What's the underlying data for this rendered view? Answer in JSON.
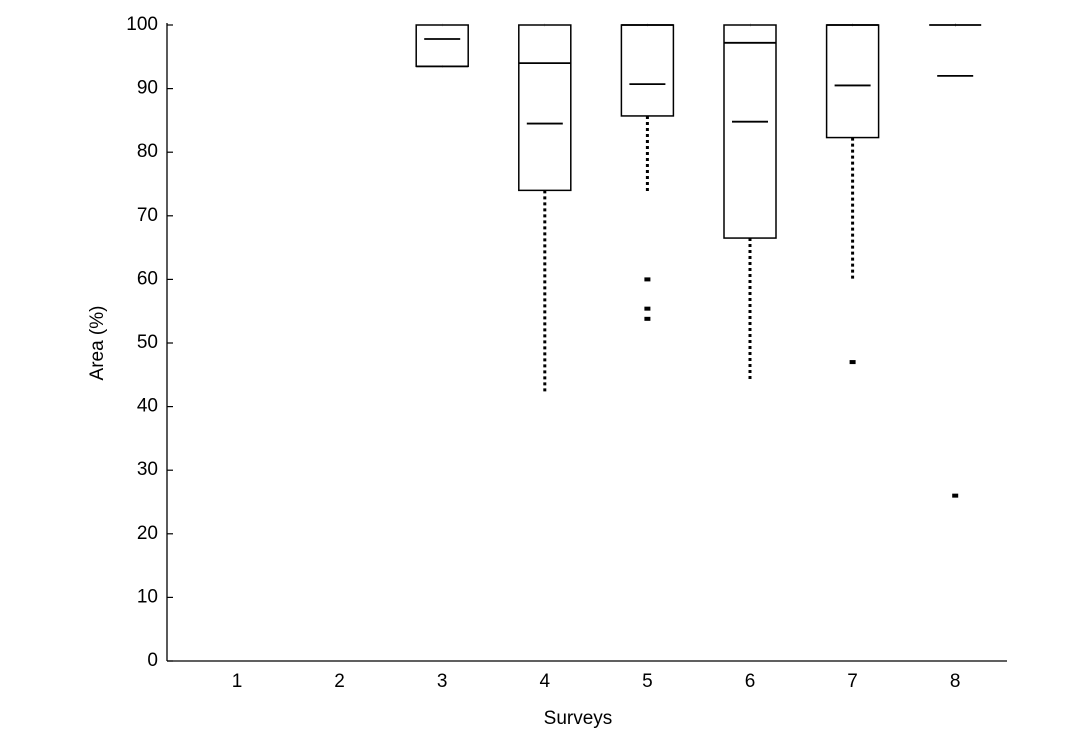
{
  "chart_data": {
    "type": "box",
    "xlabel": "Surveys",
    "ylabel": "Area (%)",
    "categories": [
      "1",
      "2",
      "3",
      "4",
      "5",
      "6",
      "7",
      "8"
    ],
    "whisker_low": [
      null,
      null,
      93.5,
      42,
      73.8,
      44,
      60,
      100
    ],
    "q1": [
      null,
      null,
      93.5,
      74,
      85.7,
      66.5,
      82.3,
      100
    ],
    "median": [
      null,
      null,
      93.5,
      94,
      100,
      97.2,
      100,
      100
    ],
    "q3": [
      null,
      null,
      100,
      100,
      100,
      100,
      100,
      100
    ],
    "whisker_high": [
      null,
      null,
      100,
      100,
      100,
      100,
      100,
      100
    ],
    "mean": [
      null,
      null,
      97.8,
      84.5,
      90.7,
      84.8,
      90.5,
      92
    ],
    "outliers": [
      [],
      [],
      [],
      [],
      [
        60,
        55.4,
        53.8
      ],
      [],
      [
        47
      ],
      [
        26
      ]
    ],
    "color": "#000000",
    "ylim": [
      0,
      100
    ],
    "yticks": [
      0,
      10,
      20,
      30,
      40,
      50,
      60,
      70,
      80,
      90,
      100
    ]
  }
}
